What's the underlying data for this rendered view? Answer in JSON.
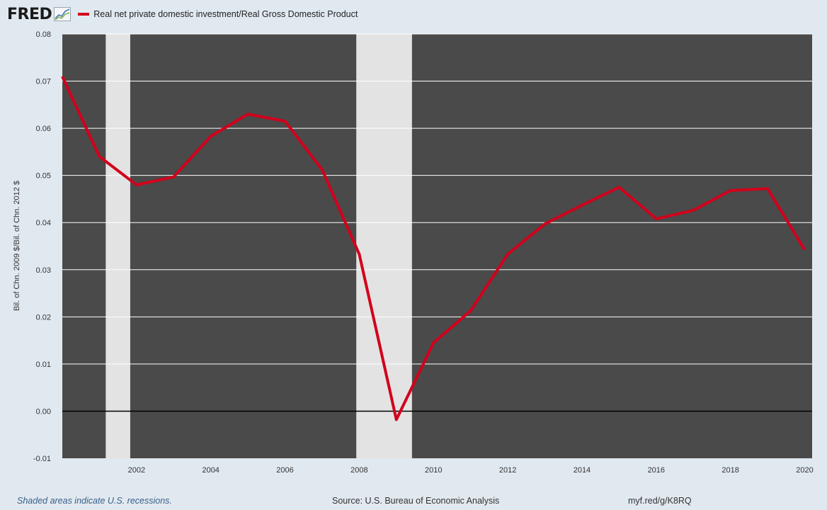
{
  "header": {
    "logo_text": "FRED",
    "logo_icon": "trend-graph-icon",
    "legend_label": "Real net private domestic investment/Real Gross Domestic Product"
  },
  "footer": {
    "recession_note": "Shaded areas indicate U.S. recessions.",
    "source": "Source: U.S. Bureau of Economic Analysis",
    "link": "myf.red/g/K8RQ"
  },
  "colors": {
    "series": "#d2001c",
    "plot_background": "#4a4a4a",
    "recession_shade": "#e3e3e3",
    "page_background": "#e1e9f0"
  },
  "chart_data": {
    "type": "line",
    "ylabel": "Bil. of Chn. 2009 $/Bil. of Chn. 2012 $",
    "xlabel": "",
    "ylim": [
      -0.01,
      0.08
    ],
    "xlim": [
      2000,
      2020.2
    ],
    "yticks": [
      "-0.01",
      "0.00",
      "0.01",
      "0.02",
      "0.03",
      "0.04",
      "0.05",
      "0.06",
      "0.07",
      "0.08"
    ],
    "xticks": [
      "2002",
      "2004",
      "2006",
      "2008",
      "2010",
      "2012",
      "2014",
      "2016",
      "2018",
      "2020"
    ],
    "grid": true,
    "recessions": [
      [
        2001.17,
        2001.83
      ],
      [
        2007.92,
        2009.42
      ]
    ],
    "series": [
      {
        "name": "Real net private domestic investment/Real Gross Domestic Product",
        "x": [
          2000,
          2001,
          2002,
          2003,
          2004,
          2005,
          2006,
          2007,
          2008,
          2009,
          2010,
          2011,
          2012,
          2013,
          2014,
          2015,
          2016,
          2017,
          2018,
          2019,
          2020
        ],
        "values": [
          0.071,
          0.054,
          0.048,
          0.0497,
          0.0583,
          0.063,
          0.0615,
          0.0512,
          0.0333,
          -0.0018,
          0.0145,
          0.0213,
          0.0333,
          0.0397,
          0.0437,
          0.0475,
          0.0408,
          0.0426,
          0.0468,
          0.0472,
          0.0342
        ]
      }
    ]
  }
}
